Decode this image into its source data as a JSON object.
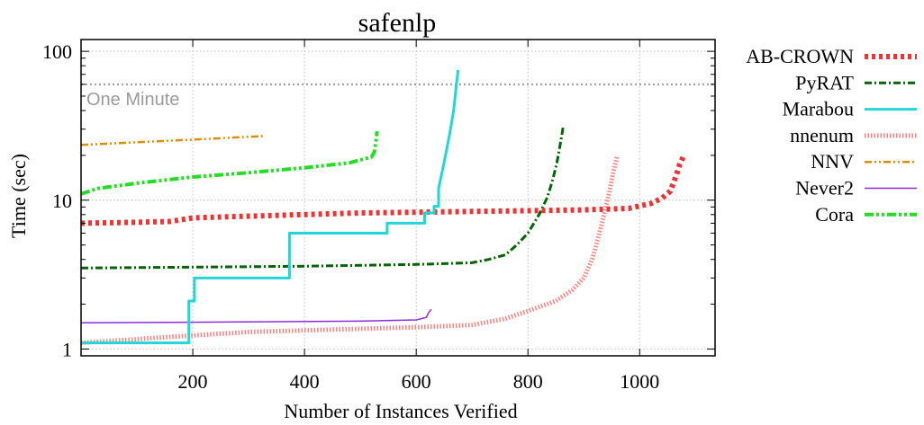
{
  "chart_data": {
    "type": "line",
    "title": "safenlp",
    "xlabel": "Number of Instances Verified",
    "ylabel": "Time (sec)",
    "xlim": [
      0,
      1135
    ],
    "ylim": [
      0.9,
      120
    ],
    "y_scale": "log",
    "grid": true,
    "legend_position": "right",
    "x_ticks": [
      200,
      400,
      600,
      800,
      1000
    ],
    "x_tick_labels": [
      "200",
      "400",
      "600",
      "800",
      "1000"
    ],
    "y_ticks": [
      1,
      10,
      100
    ],
    "y_tick_labels": [
      "1",
      "10",
      "100"
    ],
    "reference_lines": [
      {
        "label": "One Minute",
        "y": 60,
        "color": "#999999"
      }
    ],
    "series": [
      {
        "name": "AB-CROWN",
        "color": "#ee3333",
        "style": "dotted-thick",
        "points": [
          [
            0,
            7.0
          ],
          [
            100,
            7.1
          ],
          [
            160,
            7.2
          ],
          [
            200,
            7.6
          ],
          [
            300,
            7.8
          ],
          [
            400,
            8.0
          ],
          [
            500,
            8.2
          ],
          [
            600,
            8.3
          ],
          [
            700,
            8.4
          ],
          [
            800,
            8.5
          ],
          [
            900,
            8.6
          ],
          [
            980,
            8.8
          ],
          [
            1020,
            9.5
          ],
          [
            1040,
            10.3
          ],
          [
            1055,
            11.5
          ],
          [
            1065,
            14.5
          ],
          [
            1072,
            17.5
          ],
          [
            1078,
            19.5
          ]
        ]
      },
      {
        "name": "PyRAT",
        "color": "#006400",
        "style": "dash-dot",
        "points": [
          [
            0,
            3.5
          ],
          [
            200,
            3.55
          ],
          [
            400,
            3.6
          ],
          [
            600,
            3.7
          ],
          [
            700,
            3.8
          ],
          [
            730,
            4.0
          ],
          [
            760,
            4.3
          ],
          [
            780,
            5.0
          ],
          [
            800,
            6.0
          ],
          [
            820,
            8.0
          ],
          [
            835,
            10.5
          ],
          [
            845,
            14.0
          ],
          [
            852,
            18.0
          ],
          [
            858,
            24.0
          ],
          [
            863,
            31.0
          ]
        ]
      },
      {
        "name": "Marabou",
        "color": "#22d6d6",
        "style": "solid-thick",
        "points": [
          [
            0,
            1.1
          ],
          [
            193,
            1.1
          ],
          [
            193,
            2.1
          ],
          [
            203,
            2.1
          ],
          [
            203,
            3.0
          ],
          [
            373,
            3.0
          ],
          [
            373,
            6.0
          ],
          [
            548,
            6.0
          ],
          [
            548,
            7.0
          ],
          [
            615,
            7.0
          ],
          [
            615,
            8.2
          ],
          [
            632,
            8.2
          ],
          [
            632,
            9.1
          ],
          [
            640,
            9.1
          ],
          [
            640,
            12.0
          ],
          [
            650,
            18.0
          ],
          [
            660,
            28.0
          ],
          [
            667,
            40.0
          ],
          [
            672,
            60.0
          ],
          [
            675,
            75.0
          ]
        ]
      },
      {
        "name": "nnenum",
        "color": "#ff8080",
        "style": "dotted-fine",
        "points": [
          [
            0,
            1.1
          ],
          [
            150,
            1.2
          ],
          [
            300,
            1.3
          ],
          [
            450,
            1.35
          ],
          [
            600,
            1.4
          ],
          [
            700,
            1.45
          ],
          [
            760,
            1.6
          ],
          [
            800,
            1.8
          ],
          [
            850,
            2.1
          ],
          [
            880,
            2.5
          ],
          [
            900,
            3.0
          ],
          [
            915,
            4.0
          ],
          [
            928,
            6.0
          ],
          [
            938,
            8.5
          ],
          [
            946,
            11.5
          ],
          [
            952,
            15.0
          ],
          [
            960,
            20.0
          ]
        ]
      },
      {
        "name": "NNV",
        "color": "#e08c00",
        "style": "dash-dot-dot",
        "points": [
          [
            0,
            23.5
          ],
          [
            100,
            24.5
          ],
          [
            200,
            25.5
          ],
          [
            330,
            27.0
          ]
        ]
      },
      {
        "name": "Never2",
        "color": "#8c2bd6",
        "style": "solid-thin",
        "points": [
          [
            0,
            1.5
          ],
          [
            300,
            1.52
          ],
          [
            500,
            1.54
          ],
          [
            600,
            1.57
          ],
          [
            618,
            1.63
          ],
          [
            622,
            1.75
          ],
          [
            627,
            1.85
          ]
        ]
      },
      {
        "name": "Cora",
        "color": "#22dd22",
        "style": "dash-dot-dot-thick",
        "points": [
          [
            0,
            11.0
          ],
          [
            30,
            12.0
          ],
          [
            100,
            13.0
          ],
          [
            200,
            14.3
          ],
          [
            300,
            15.3
          ],
          [
            400,
            16.5
          ],
          [
            480,
            17.8
          ],
          [
            520,
            19.5
          ],
          [
            525,
            21.0
          ],
          [
            528,
            25.0
          ],
          [
            530,
            29.0
          ]
        ]
      }
    ]
  }
}
